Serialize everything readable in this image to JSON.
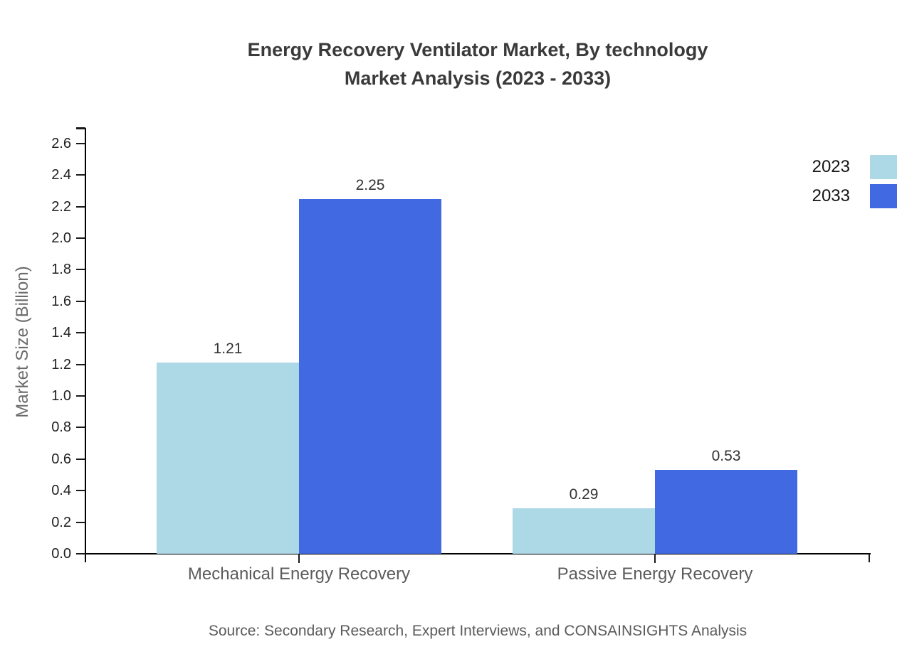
{
  "title": {
    "line1": "Energy Recovery Ventilator Market, By technology",
    "line2": "Market Analysis (2023 - 2033)"
  },
  "chart_data": {
    "type": "bar",
    "title": "Energy Recovery Ventilator Market, By technology Market Analysis (2023 - 2033)",
    "categories": [
      "Mechanical Energy Recovery",
      "Passive Energy Recovery"
    ],
    "series": [
      {
        "name": "2023",
        "color": "#ADD8E6",
        "values": [
          1.21,
          0.29
        ]
      },
      {
        "name": "2033",
        "color": "#4169E1",
        "values": [
          2.25,
          0.53
        ]
      }
    ],
    "value_labels": [
      [
        "1.21",
        "0.29"
      ],
      [
        "2.25",
        "0.53"
      ]
    ],
    "xlabel": "",
    "ylabel": "Market Size (Billion)",
    "ylim": [
      0,
      2.6
    ],
    "ytick_step": 0.2,
    "ytick_labels": [
      "0.0",
      "0.2",
      "0.4",
      "0.6",
      "0.8",
      "1.0",
      "1.2",
      "1.4",
      "1.6",
      "1.8",
      "2.0",
      "2.2",
      "2.4",
      "2.6"
    ],
    "grid": false,
    "legend": {
      "position": "top-right",
      "entries": [
        "2023",
        "2033"
      ]
    }
  },
  "source": "Source: Secondary Research, Expert Interviews, and CONSAINSIGHTS Analysis",
  "colors": {
    "background": "#ffffff",
    "title": "#3a3a3a",
    "axis": "#000000",
    "tick_label": "#1f1f1f",
    "category_label": "#5b5b5b",
    "ylabel": "#6b6b6b",
    "source": "#5b5b5b",
    "series_2023": "#ADD8E6",
    "series_2033": "#4169E1"
  }
}
